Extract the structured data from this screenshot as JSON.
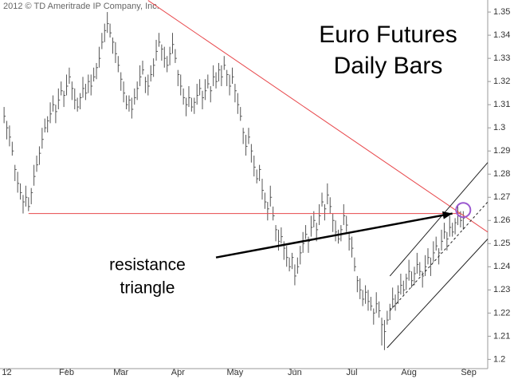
{
  "chart_data": {
    "type": "hlc",
    "copyright": "2012 © TD Ameritrade IP Company, Inc.",
    "title_lines": [
      "Euro Futures",
      "Daily Bars"
    ],
    "annotation_lines": [
      "resistance",
      "triangle"
    ],
    "color": "#555555",
    "xlim": [
      -1.5,
      178
    ],
    "xticks": [
      {
        "value": 1,
        "label": "12"
      },
      {
        "value": 23,
        "label": "Feb"
      },
      {
        "value": 43,
        "label": "Mar"
      },
      {
        "value": 64,
        "label": "Apr"
      },
      {
        "value": 85,
        "label": "May"
      },
      {
        "value": 107,
        "label": "Jun"
      },
      {
        "value": 128,
        "label": "Jul"
      },
      {
        "value": 149,
        "label": "Aug"
      },
      {
        "value": 171,
        "label": "Sep"
      }
    ],
    "ylim": [
      1.196,
      1.3552
    ],
    "yticks": [
      {
        "value": 1.2,
        "label": "1.2"
      },
      1.21,
      1.22,
      1.23,
      1.24,
      1.25,
      1.26,
      1.27,
      1.28,
      1.29,
      {
        "value": 1.3,
        "label": "1.3"
      },
      1.31,
      1.32,
      1.33,
      1.34,
      1.35
    ],
    "high": [
      1.309,
      1.303,
      1.301,
      1.294,
      1.284,
      1.281,
      1.276,
      1.271,
      1.275,
      1.27,
      1.274,
      1.284,
      1.288,
      1.292,
      1.3,
      1.304,
      1.305,
      1.311,
      1.314,
      1.31,
      1.317,
      1.32,
      1.316,
      1.323,
      1.326,
      1.32,
      1.317,
      1.313,
      1.315,
      1.322,
      1.319,
      1.323,
      1.323,
      1.326,
      1.328,
      1.335,
      1.341,
      1.345,
      1.35,
      1.345,
      1.339,
      1.337,
      1.331,
      1.324,
      1.32,
      1.314,
      1.314,
      1.313,
      1.317,
      1.32,
      1.327,
      1.329,
      1.322,
      1.323,
      1.327,
      1.33,
      1.338,
      1.341,
      1.336,
      1.335,
      1.331,
      1.335,
      1.341,
      1.334,
      1.325,
      1.323,
      1.317,
      1.313,
      1.318,
      1.313,
      1.313,
      1.319,
      1.321,
      1.316,
      1.321,
      1.323,
      1.318,
      1.327,
      1.324,
      1.328,
      1.327,
      1.331,
      1.325,
      1.323,
      1.326,
      1.319,
      1.315,
      1.309,
      1.3,
      1.297,
      1.3,
      1.293,
      1.288,
      1.282,
      1.284,
      1.278,
      1.272,
      1.268,
      1.275,
      1.266,
      1.258,
      1.256,
      1.257,
      1.251,
      1.249,
      1.244,
      1.246,
      1.241,
      1.244,
      1.249,
      1.255,
      1.258,
      1.253,
      1.262,
      1.264,
      1.259,
      1.267,
      1.272,
      1.267,
      1.276,
      1.27,
      1.263,
      1.26,
      1.256,
      1.258,
      1.267,
      1.262,
      1.255,
      1.253,
      1.244,
      1.236,
      1.235,
      1.23,
      1.232,
      1.23,
      1.227,
      1.222,
      1.229,
      1.225,
      1.218,
      1.217,
      1.221,
      1.224,
      1.231,
      1.228,
      1.232,
      1.237,
      1.234,
      1.237,
      1.243,
      1.238,
      1.24,
      1.246,
      1.242,
      1.238,
      1.245,
      1.248,
      1.244,
      1.251,
      1.253,
      1.248,
      1.256,
      1.259,
      1.255,
      1.262,
      1.259,
      1.261,
      1.267,
      1.264,
      1.264
    ],
    "low": [
      1.302,
      1.295,
      1.292,
      1.288,
      1.277,
      1.272,
      1.269,
      1.263,
      1.266,
      1.264,
      1.267,
      1.275,
      1.281,
      1.284,
      1.291,
      1.298,
      1.298,
      1.302,
      1.307,
      1.302,
      1.308,
      1.314,
      1.309,
      1.314,
      1.319,
      1.312,
      1.308,
      1.307,
      1.308,
      1.313,
      1.312,
      1.315,
      1.314,
      1.32,
      1.321,
      1.326,
      1.334,
      1.337,
      1.341,
      1.339,
      1.332,
      1.328,
      1.324,
      1.316,
      1.311,
      1.308,
      1.307,
      1.304,
      1.31,
      1.312,
      1.318,
      1.323,
      1.315,
      1.314,
      1.32,
      1.322,
      1.329,
      1.335,
      1.329,
      1.326,
      1.324,
      1.327,
      1.332,
      1.328,
      1.318,
      1.314,
      1.31,
      1.305,
      1.309,
      1.307,
      1.306,
      1.31,
      1.314,
      1.308,
      1.312,
      1.317,
      1.311,
      1.318,
      1.317,
      1.32,
      1.318,
      1.325,
      1.318,
      1.314,
      1.319,
      1.311,
      1.306,
      1.303,
      1.293,
      1.288,
      1.293,
      1.285,
      1.279,
      1.276,
      1.277,
      1.269,
      1.265,
      1.26,
      1.266,
      1.26,
      1.251,
      1.247,
      1.25,
      1.243,
      1.24,
      1.238,
      1.239,
      1.232,
      1.237,
      1.241,
      1.246,
      1.252,
      1.246,
      1.253,
      1.257,
      1.251,
      1.258,
      1.266,
      1.26,
      1.267,
      1.263,
      1.255,
      1.251,
      1.25,
      1.251,
      1.258,
      1.255,
      1.247,
      1.244,
      1.238,
      1.229,
      1.226,
      1.223,
      1.224,
      1.221,
      1.221,
      1.215,
      1.22,
      1.218,
      1.206,
      1.204,
      1.215,
      1.217,
      1.222,
      1.221,
      1.224,
      1.228,
      1.228,
      1.23,
      1.234,
      1.231,
      1.232,
      1.237,
      1.236,
      1.231,
      1.236,
      1.241,
      1.236,
      1.242,
      1.247,
      1.241,
      1.247,
      1.252,
      1.247,
      1.253,
      1.253,
      1.254,
      1.258,
      1.257,
      1.256
    ],
    "close": [
      1.305,
      1.3,
      1.296,
      1.29,
      1.282,
      1.276,
      1.272,
      1.268,
      1.27,
      1.266,
      1.272,
      1.279,
      1.284,
      1.289,
      1.295,
      1.3,
      1.303,
      1.306,
      1.31,
      1.307,
      1.312,
      1.316,
      1.314,
      1.318,
      1.322,
      1.317,
      1.312,
      1.309,
      1.313,
      1.317,
      1.315,
      1.32,
      1.318,
      1.322,
      1.326,
      1.33,
      1.337,
      1.342,
      1.345,
      1.341,
      1.337,
      1.332,
      1.327,
      1.321,
      1.315,
      1.31,
      1.312,
      1.308,
      1.313,
      1.317,
      1.322,
      1.325,
      1.32,
      1.318,
      1.323,
      1.327,
      1.333,
      1.337,
      1.334,
      1.33,
      1.327,
      1.332,
      1.336,
      1.33,
      1.323,
      1.318,
      1.313,
      1.31,
      1.313,
      1.309,
      1.311,
      1.314,
      1.317,
      1.313,
      1.316,
      1.319,
      1.316,
      1.322,
      1.32,
      1.325,
      1.322,
      1.327,
      1.323,
      1.318,
      1.322,
      1.316,
      1.31,
      1.305,
      1.298,
      1.292,
      1.296,
      1.29,
      1.283,
      1.278,
      1.282,
      1.273,
      1.268,
      1.265,
      1.27,
      1.262,
      1.256,
      1.251,
      1.253,
      1.248,
      1.244,
      1.24,
      1.244,
      1.236,
      1.24,
      1.246,
      1.25,
      1.254,
      1.251,
      1.257,
      1.26,
      1.256,
      1.262,
      1.268,
      1.265,
      1.271,
      1.266,
      1.26,
      1.255,
      1.252,
      1.256,
      1.262,
      1.258,
      1.252,
      1.248,
      1.24,
      1.234,
      1.23,
      1.226,
      1.229,
      1.225,
      1.223,
      1.22,
      1.224,
      1.221,
      1.215,
      1.212,
      1.217,
      1.222,
      1.226,
      1.224,
      1.229,
      1.232,
      1.23,
      1.235,
      1.238,
      1.234,
      1.237,
      1.241,
      1.238,
      1.236,
      1.24,
      1.244,
      1.241,
      1.246,
      1.249,
      1.246,
      1.251,
      1.255,
      1.252,
      1.257,
      1.255,
      1.259,
      1.262,
      1.26,
      1.261
    ],
    "trendlines": [
      {
        "from": [
          53,
          1.355
        ],
        "to": [
          178,
          1.255
        ],
        "color": "#e8484c"
      },
      {
        "from": [
          9,
          1.263
        ],
        "to": [
          168,
          1.263
        ],
        "color": "#e8484c"
      },
      {
        "from": [
          142,
          1.236
        ],
        "to": [
          178,
          1.285
        ],
        "color": "#222222"
      },
      {
        "from": [
          141,
          1.205
        ],
        "to": [
          178,
          1.252
        ],
        "color": "#222222"
      },
      {
        "from": [
          142,
          1.221
        ],
        "to": [
          178,
          1.268
        ],
        "color": "#222222",
        "dashed": true
      }
    ],
    "circle": {
      "at": [
        169,
        1.2645
      ],
      "color": "#9b59d0"
    },
    "arrow": {
      "from": [
        78,
        1.244
      ],
      "to": [
        165,
        1.263
      ],
      "color": "#000000"
    }
  }
}
